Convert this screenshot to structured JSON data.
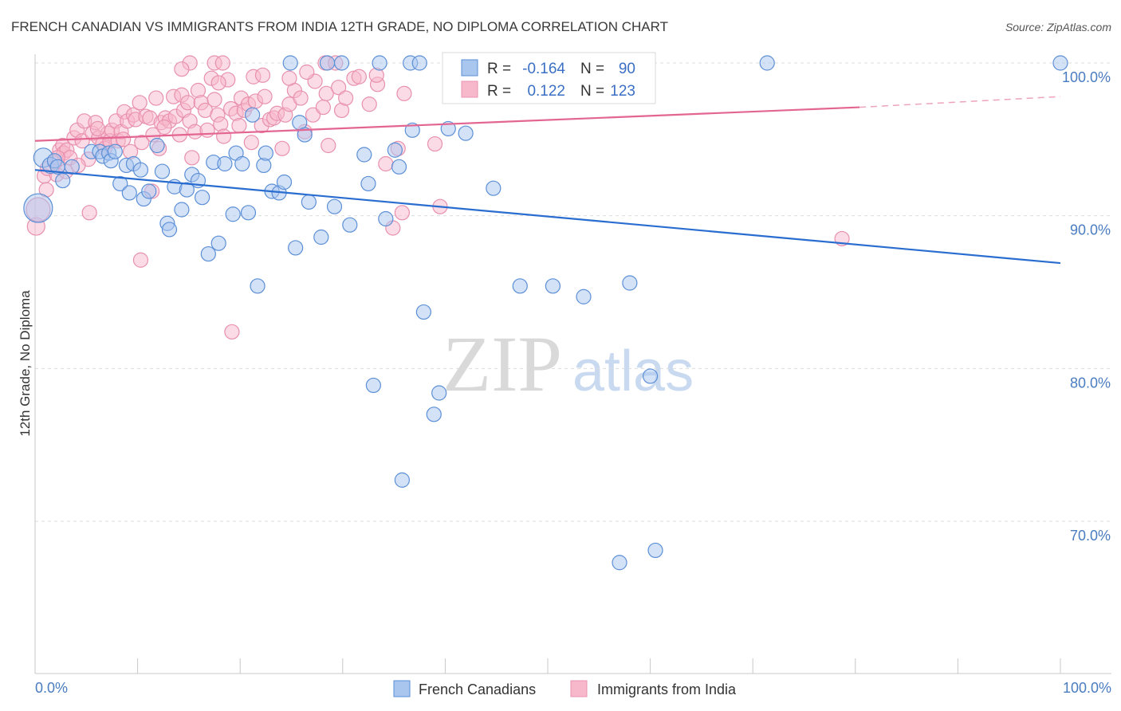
{
  "title": "FRENCH CANADIAN VS IMMIGRANTS FROM INDIA 12TH GRADE, NO DIPLOMA CORRELATION CHART",
  "source": "Source: ZipAtlas.com",
  "watermark": {
    "zip": "ZIP",
    "atlas": "atlas"
  },
  "legend": {
    "series1": "French Canadians",
    "series2": "Immigrants from India"
  },
  "stats": {
    "r_label": "R =",
    "n_label": "N =",
    "s1_r": "-0.164",
    "s1_n": "90",
    "s2_r": "0.122",
    "s2_n": "123"
  },
  "colors": {
    "blue_fill": "#a9c6ef",
    "blue_stroke": "#5b8fd6",
    "blue_line": "#2a6dd0",
    "pink_fill": "#f7b8cc",
    "pink_stroke": "#e890ae",
    "pink_line": "#e36592",
    "grid": "#dcdcdc",
    "axis_text": "#4a7cc0"
  },
  "chart_data": {
    "type": "scatter",
    "title": "FRENCH CANADIAN VS IMMIGRANTS FROM INDIA 12TH GRADE, NO DIPLOMA CORRELATION CHART",
    "xlabel": "",
    "ylabel": "12th Grade, No Diploma",
    "xlim": [
      0,
      100
    ],
    "ylim": [
      60,
      102
    ],
    "x_tick_labels": [
      "0.0%",
      "100.0%"
    ],
    "y_ticks": [
      70,
      80,
      90,
      100
    ],
    "y_tick_labels": [
      "70.0%",
      "80.0%",
      "90.0%",
      "100.0%"
    ],
    "grid": true,
    "legend_position": "bottom-center",
    "series": [
      {
        "name": "French Canadians",
        "color": "#a9c6ef",
        "R": -0.164,
        "N": 90,
        "trend": {
          "x": [
            0,
            100
          ],
          "y": [
            93.0,
            86.9
          ]
        },
        "points": [
          [
            0.3,
            90.5,
            18
          ],
          [
            0.8,
            93.8,
            12
          ],
          [
            1.5,
            93.3,
            10
          ],
          [
            1.9,
            93.6,
            9
          ],
          [
            2.2,
            93.2,
            9
          ],
          [
            2.7,
            92.3,
            9
          ],
          [
            3.6,
            93.2,
            9
          ],
          [
            5.5,
            94.2,
            9
          ],
          [
            6.3,
            94.2,
            9
          ],
          [
            6.6,
            93.9,
            9
          ],
          [
            7.2,
            94.1,
            9
          ],
          [
            7.4,
            93.6,
            9
          ],
          [
            7.8,
            94.2,
            9
          ],
          [
            8.3,
            92.1,
            9
          ],
          [
            8.9,
            93.3,
            9
          ],
          [
            9.2,
            91.5,
            9
          ],
          [
            9.6,
            93.4,
            9
          ],
          [
            10.3,
            93.0,
            9
          ],
          [
            10.6,
            91.1,
            9
          ],
          [
            11.1,
            91.6,
            9
          ],
          [
            11.9,
            94.6,
            9
          ],
          [
            12.4,
            92.9,
            9
          ],
          [
            12.9,
            89.5,
            9
          ],
          [
            13.1,
            89.1,
            9
          ],
          [
            13.6,
            91.9,
            9
          ],
          [
            14.3,
            90.4,
            9
          ],
          [
            14.8,
            91.7,
            9
          ],
          [
            15.3,
            92.7,
            9
          ],
          [
            15.9,
            92.3,
            9
          ],
          [
            16.3,
            91.2,
            9
          ],
          [
            16.9,
            87.5,
            9
          ],
          [
            17.4,
            93.5,
            9
          ],
          [
            17.9,
            88.2,
            9
          ],
          [
            18.5,
            93.4,
            9
          ],
          [
            19.3,
            90.1,
            9
          ],
          [
            19.6,
            94.1,
            9
          ],
          [
            20.2,
            93.4,
            9
          ],
          [
            20.8,
            90.2,
            9
          ],
          [
            21.2,
            96.6,
            9
          ],
          [
            21.7,
            85.4,
            9
          ],
          [
            22.3,
            93.3,
            9
          ],
          [
            22.5,
            94.1,
            9
          ],
          [
            23.1,
            91.6,
            9
          ],
          [
            23.8,
            91.5,
            9
          ],
          [
            24.3,
            92.2,
            9
          ],
          [
            24.9,
            100.0,
            9
          ],
          [
            25.4,
            87.9,
            9
          ],
          [
            25.8,
            96.1,
            9
          ],
          [
            26.3,
            95.3,
            9
          ],
          [
            26.7,
            90.9,
            9
          ],
          [
            27.9,
            88.6,
            9
          ],
          [
            28.5,
            100.0,
            9
          ],
          [
            29.2,
            90.6,
            9
          ],
          [
            29.9,
            100.0,
            9
          ],
          [
            30.7,
            89.4,
            9
          ],
          [
            32.1,
            94.0,
            9
          ],
          [
            32.5,
            92.1,
            9
          ],
          [
            33.0,
            78.9,
            9
          ],
          [
            33.6,
            100.0,
            9
          ],
          [
            34.2,
            89.8,
            9
          ],
          [
            35.1,
            94.3,
            9
          ],
          [
            35.5,
            93.2,
            9
          ],
          [
            35.8,
            72.7,
            9
          ],
          [
            36.6,
            100.0,
            9
          ],
          [
            36.8,
            95.6,
            9
          ],
          [
            37.5,
            100.0,
            9
          ],
          [
            37.9,
            83.7,
            9
          ],
          [
            38.9,
            77.0,
            9
          ],
          [
            39.4,
            78.4,
            9
          ],
          [
            40.3,
            95.7,
            9
          ],
          [
            42.0,
            95.4,
            9
          ],
          [
            44.7,
            91.8,
            9
          ],
          [
            47.3,
            85.4,
            9
          ],
          [
            50.5,
            85.4,
            9
          ],
          [
            53.5,
            84.7,
            9
          ],
          [
            57.0,
            67.3,
            9
          ],
          [
            58.0,
            85.6,
            9
          ],
          [
            60.0,
            79.5,
            9
          ],
          [
            60.5,
            68.1,
            9
          ],
          [
            71.4,
            100.0,
            9
          ],
          [
            100.0,
            100.0,
            9
          ]
        ]
      },
      {
        "name": "Immigrants from India",
        "color": "#f7b8cc",
        "R": 0.122,
        "N": 123,
        "trend": {
          "x": [
            0,
            80.4
          ],
          "y": [
            94.9,
            97.1
          ]
        },
        "trend_dashed": {
          "x": [
            80.4,
            100
          ],
          "y": [
            97.1,
            97.8
          ]
        },
        "points": [
          [
            0.1,
            89.3,
            11
          ],
          [
            0.3,
            90.4,
            15
          ],
          [
            0.9,
            92.6,
            9
          ],
          [
            1.2,
            93.1,
            9
          ],
          [
            1.9,
            93.5,
            9
          ],
          [
            2.1,
            92.7,
            9
          ],
          [
            2.4,
            94.3,
            9
          ],
          [
            2.7,
            94.6,
            9
          ],
          [
            2.8,
            94.1,
            9
          ],
          [
            3.1,
            94.3,
            9
          ],
          [
            3.4,
            93.8,
            9
          ],
          [
            3.8,
            95.1,
            9
          ],
          [
            4.1,
            95.6,
            9
          ],
          [
            4.6,
            94.9,
            9
          ],
          [
            4.8,
            96.2,
            9
          ],
          [
            5.2,
            93.7,
            9
          ],
          [
            5.3,
            90.2,
            9
          ],
          [
            5.6,
            95.4,
            9
          ],
          [
            5.9,
            96.1,
            9
          ],
          [
            6.2,
            95.1,
            9
          ],
          [
            6.6,
            94.7,
            9
          ],
          [
            6.8,
            94.4,
            9
          ],
          [
            7.1,
            95.4,
            9
          ],
          [
            7.3,
            94.9,
            9
          ],
          [
            7.5,
            95.6,
            9
          ],
          [
            7.9,
            96.2,
            9
          ],
          [
            8.1,
            94.9,
            9
          ],
          [
            8.4,
            95.5,
            9
          ],
          [
            8.7,
            96.8,
            9
          ],
          [
            9.0,
            96.2,
            9
          ],
          [
            9.3,
            94.2,
            9
          ],
          [
            9.6,
            96.6,
            9
          ],
          [
            9.8,
            96.3,
            9
          ],
          [
            10.2,
            97.4,
            9
          ],
          [
            10.4,
            94.8,
            9
          ],
          [
            10.8,
            96.5,
            9
          ],
          [
            11.2,
            96.4,
            9
          ],
          [
            11.5,
            95.3,
            9
          ],
          [
            11.8,
            97.7,
            9
          ],
          [
            12.1,
            94.4,
            9
          ],
          [
            12.3,
            96.1,
            9
          ],
          [
            12.7,
            96.4,
            9
          ],
          [
            13.1,
            96.2,
            9
          ],
          [
            13.5,
            97.8,
            9
          ],
          [
            13.7,
            96.5,
            9
          ],
          [
            14.1,
            95.3,
            9
          ],
          [
            14.3,
            97.9,
            9
          ],
          [
            14.5,
            96.9,
            9
          ],
          [
            14.9,
            97.4,
            9
          ],
          [
            15.1,
            96.2,
            9
          ],
          [
            15.3,
            93.8,
            9
          ],
          [
            15.6,
            95.5,
            9
          ],
          [
            15.9,
            98.2,
            9
          ],
          [
            16.2,
            97.4,
            9
          ],
          [
            16.6,
            96.9,
            9
          ],
          [
            16.8,
            95.6,
            9
          ],
          [
            17.2,
            99.0,
            9
          ],
          [
            17.5,
            97.6,
            9
          ],
          [
            17.8,
            96.6,
            9
          ],
          [
            18.1,
            96.0,
            9
          ],
          [
            18.4,
            95.2,
            9
          ],
          [
            18.8,
            98.9,
            9
          ],
          [
            19.1,
            97.0,
            9
          ],
          [
            19.6,
            96.7,
            9
          ],
          [
            19.9,
            95.9,
            9
          ],
          [
            20.1,
            97.7,
            9
          ],
          [
            20.4,
            96.9,
            9
          ],
          [
            20.8,
            97.3,
            9
          ],
          [
            21.1,
            94.8,
            9
          ],
          [
            21.5,
            97.5,
            9
          ],
          [
            22.1,
            95.9,
            9
          ],
          [
            22.4,
            97.8,
            9
          ],
          [
            22.9,
            96.3,
            9
          ],
          [
            23.3,
            96.4,
            9
          ],
          [
            23.6,
            96.7,
            9
          ],
          [
            24.1,
            94.4,
            9
          ],
          [
            24.4,
            96.6,
            9
          ],
          [
            24.8,
            97.3,
            9
          ],
          [
            25.3,
            98.2,
            9
          ],
          [
            25.9,
            97.7,
            9
          ],
          [
            26.3,
            95.5,
            9
          ],
          [
            27.1,
            96.6,
            9
          ],
          [
            27.3,
            98.8,
            9
          ],
          [
            28.1,
            97.1,
            9
          ],
          [
            28.4,
            98.0,
            9
          ],
          [
            28.6,
            94.6,
            9
          ],
          [
            29.6,
            98.4,
            9
          ],
          [
            29.9,
            96.9,
            9
          ],
          [
            30.3,
            97.7,
            9
          ],
          [
            31.1,
            99.0,
            9
          ],
          [
            31.6,
            99.1,
            9
          ],
          [
            32.6,
            97.3,
            9
          ],
          [
            33.4,
            98.6,
            9
          ],
          [
            34.2,
            93.4,
            9
          ],
          [
            34.9,
            89.2,
            9
          ],
          [
            35.4,
            94.4,
            9
          ],
          [
            36.0,
            98.0,
            9
          ],
          [
            39.0,
            94.7,
            9
          ],
          [
            39.5,
            90.6,
            9
          ],
          [
            15.1,
            100.0,
            9
          ],
          [
            17.5,
            100.0,
            9
          ],
          [
            18.3,
            100.0,
            9
          ],
          [
            14.3,
            99.6,
            9
          ],
          [
            21.3,
            99.1,
            9
          ],
          [
            24.8,
            99.0,
            9
          ],
          [
            28.3,
            100.0,
            9
          ],
          [
            29.3,
            100.0,
            9
          ],
          [
            26.5,
            99.4,
            9
          ],
          [
            33.3,
            99.2,
            9
          ],
          [
            17.9,
            98.7,
            9
          ],
          [
            22.2,
            99.2,
            9
          ],
          [
            8.6,
            95.0,
            9
          ],
          [
            6.1,
            95.7,
            9
          ],
          [
            4.2,
            93.3,
            9
          ],
          [
            3.0,
            92.9,
            9
          ],
          [
            2.2,
            93.8,
            9
          ],
          [
            1.1,
            91.7,
            9
          ],
          [
            12.6,
            95.8,
            9
          ],
          [
            10.3,
            87.1,
            9
          ],
          [
            11.4,
            91.6,
            9
          ],
          [
            19.2,
            82.4,
            9
          ],
          [
            35.8,
            90.2,
            9
          ],
          [
            78.7,
            88.5,
            9
          ]
        ]
      }
    ]
  }
}
